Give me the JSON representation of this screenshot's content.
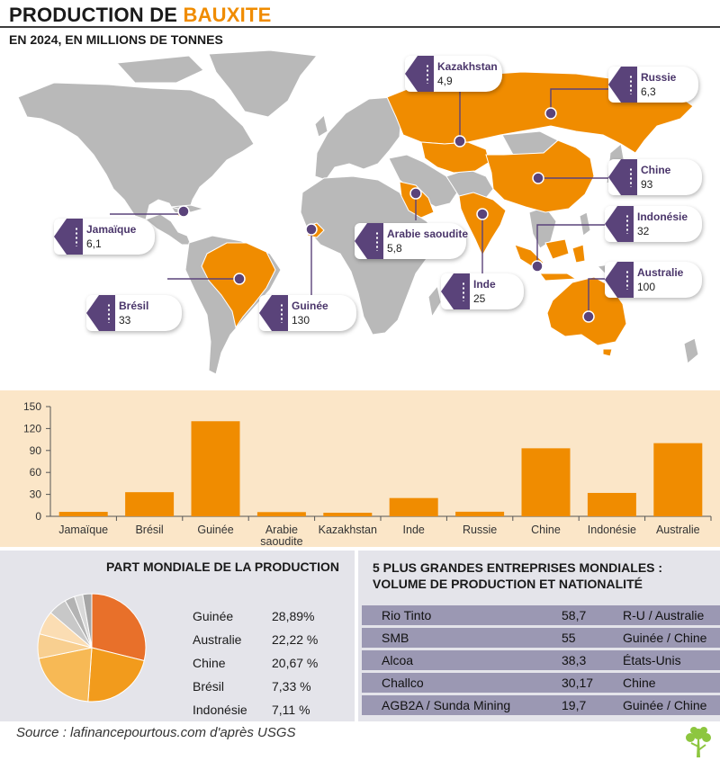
{
  "header": {
    "title_main": "PRODUCTION DE ",
    "title_accent": "BAUXITE",
    "subtitle": "EN 2024, EN MILLIONS DE TONNES"
  },
  "colors": {
    "accent": "#f08c00",
    "purple": "#5a437a",
    "land": "#b9b9b9",
    "panel": "#fbe6c8"
  },
  "map_labels": [
    {
      "name": "Kazakhstan",
      "value": "4,9"
    },
    {
      "name": "Russie",
      "value": "6,3"
    },
    {
      "name": "Chine",
      "value": "93"
    },
    {
      "name": "Jamaïque",
      "value": "6,1"
    },
    {
      "name": "Arabie saoudite",
      "value": "5,8"
    },
    {
      "name": "Indonésie",
      "value": "32"
    },
    {
      "name": "Brésil",
      "value": "33"
    },
    {
      "name": "Guinée",
      "value": "130"
    },
    {
      "name": "Inde",
      "value": "25"
    },
    {
      "name": "Australie",
      "value": "100"
    }
  ],
  "chart_data": {
    "type": "bar",
    "categories": [
      "Jamaïque",
      "Brésil",
      "Guinée",
      "Arabie saoudite",
      "Kazakhstan",
      "Inde",
      "Russie",
      "Chine",
      "Indonésie",
      "Australie"
    ],
    "values": [
      6.1,
      33,
      130,
      5.8,
      4.9,
      25,
      6.3,
      93,
      32,
      100
    ],
    "yticks": [
      0,
      30,
      60,
      90,
      120,
      150
    ],
    "ylim": [
      0,
      150
    ],
    "bar_color": "#f08c00"
  },
  "share": {
    "title": "PART MONDIALE DE LA PRODUCTION",
    "rows": [
      {
        "country": "Guinée",
        "value": "28,89%",
        "share": 28.89,
        "color": "#e8702a"
      },
      {
        "country": "Australie",
        "value": "22,22 %",
        "share": 22.22,
        "color": "#f29b1c"
      },
      {
        "country": "Chine",
        "value": "20,67 %",
        "share": 20.67,
        "color": "#f7b955"
      },
      {
        "country": "Brésil",
        "value": "7,33 %",
        "share": 7.33,
        "color": "#f8cf90"
      },
      {
        "country": "Indonésie",
        "value": "7,11 %",
        "share": 7.11,
        "color": "#fbddb3"
      }
    ],
    "other_slices": [
      {
        "share": 5.56,
        "color": "#c8c8c8"
      },
      {
        "share": 3.0,
        "color": "#b3b3b3"
      },
      {
        "share": 2.5,
        "color": "#d8d8d8"
      },
      {
        "share": 2.72,
        "color": "#a6a6a6"
      }
    ]
  },
  "companies": {
    "title": "5 PLUS GRANDES ENTREPRISES MONDIALES :",
    "title2": "VOLUME DE PRODUCTION ET NATIONALITÉ",
    "rows": [
      {
        "name": "Rio Tinto",
        "volume": "58,7",
        "nationality": "R-U / Australie"
      },
      {
        "name": "SMB",
        "volume": "55",
        "nationality": "Guinée / Chine"
      },
      {
        "name": "Alcoa",
        "volume": "38,3",
        "nationality": "États-Unis"
      },
      {
        "name": "Challco",
        "volume": "30,17",
        "nationality": "Chine"
      },
      {
        "name": "AGB2A / Sunda Mining",
        "volume": "19,7",
        "nationality": "Guinée / Chine"
      }
    ]
  },
  "footer": {
    "source": "Source : lafinancepourtous.com d'après USGS",
    "logo_icon": "tree-logo-icon"
  }
}
